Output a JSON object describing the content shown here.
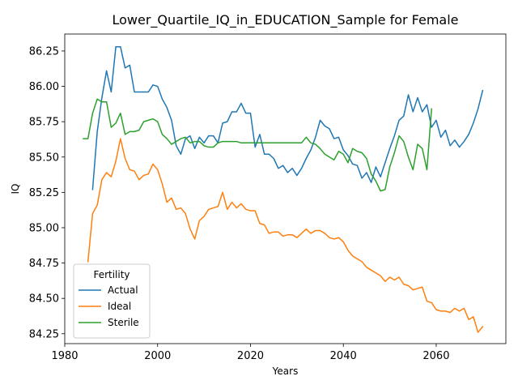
{
  "chart_data": {
    "type": "line",
    "title": "Lower_Quartile_IQ_in_EDUCATION_Sample for Female",
    "xlabel": "Years",
    "ylabel": "IQ",
    "xlim": [
      1980,
      2075
    ],
    "ylim": [
      84.18,
      86.37
    ],
    "x_ticks": [
      1980,
      2000,
      2020,
      2040,
      2060
    ],
    "y_ticks": [
      84.25,
      84.5,
      84.75,
      85.0,
      85.25,
      85.5,
      85.75,
      86.0,
      86.25
    ],
    "y_tick_labels": [
      "84.25",
      "84.50",
      "84.75",
      "85.00",
      "85.25",
      "85.50",
      "85.75",
      "86.00",
      "86.25"
    ],
    "grid": false,
    "legend": {
      "title": "Fertility",
      "position": "lower-left"
    },
    "series": [
      {
        "name": "Actual",
        "color": "#1f77b4",
        "x": [
          1986,
          1987,
          1988,
          1989,
          1990,
          1991,
          1992,
          1993,
          1994,
          1995,
          1996,
          1997,
          1998,
          1999,
          2000,
          2001,
          2002,
          2003,
          2004,
          2005,
          2006,
          2007,
          2008,
          2009,
          2010,
          2011,
          2012,
          2013,
          2014,
          2015,
          2016,
          2017,
          2018,
          2019,
          2020,
          2021,
          2022,
          2023,
          2024,
          2025,
          2026,
          2027,
          2028,
          2029,
          2030,
          2031,
          2032,
          2033,
          2034,
          2035,
          2036,
          2037,
          2038,
          2039,
          2040,
          2041,
          2042,
          2043,
          2044,
          2045,
          2046,
          2047,
          2048,
          2049,
          2050,
          2051,
          2052,
          2053,
          2054,
          2055,
          2056,
          2057,
          2058,
          2059,
          2060,
          2061,
          2062,
          2063,
          2064,
          2065,
          2066,
          2067,
          2068,
          2069,
          2070
        ],
        "values": [
          85.27,
          85.68,
          85.92,
          86.11,
          85.96,
          86.28,
          86.28,
          86.13,
          86.15,
          85.96,
          85.96,
          85.96,
          85.96,
          86.01,
          86.0,
          85.91,
          85.85,
          85.76,
          85.58,
          85.52,
          85.63,
          85.65,
          85.56,
          85.64,
          85.6,
          85.65,
          85.65,
          85.6,
          85.74,
          85.75,
          85.82,
          85.82,
          85.88,
          85.81,
          85.81,
          85.57,
          85.66,
          85.52,
          85.52,
          85.49,
          85.42,
          85.44,
          85.39,
          85.42,
          85.37,
          85.42,
          85.49,
          85.55,
          85.64,
          85.76,
          85.72,
          85.7,
          85.63,
          85.64,
          85.55,
          85.51,
          85.45,
          85.44,
          85.35,
          85.39,
          85.32,
          85.43,
          85.36,
          85.46,
          85.56,
          85.65,
          85.76,
          85.79,
          85.94,
          85.82,
          85.92,
          85.82,
          85.87,
          85.71,
          85.76,
          85.64,
          85.69,
          85.58,
          85.62,
          85.57,
          85.61,
          85.66,
          85.74,
          85.84,
          85.97
        ]
      },
      {
        "name": "Ideal",
        "color": "#ff7f0e",
        "x": [
          1985,
          1986,
          1987,
          1988,
          1989,
          1990,
          1991,
          1992,
          1993,
          1994,
          1995,
          1996,
          1997,
          1998,
          1999,
          2000,
          2001,
          2002,
          2003,
          2004,
          2005,
          2006,
          2007,
          2008,
          2009,
          2010,
          2011,
          2012,
          2013,
          2014,
          2015,
          2016,
          2017,
          2018,
          2019,
          2020,
          2021,
          2022,
          2023,
          2024,
          2025,
          2026,
          2027,
          2028,
          2029,
          2030,
          2031,
          2032,
          2033,
          2034,
          2035,
          2036,
          2037,
          2038,
          2039,
          2040,
          2041,
          2042,
          2043,
          2044,
          2045,
          2046,
          2047,
          2048,
          2049,
          2050,
          2051,
          2052,
          2053,
          2054,
          2055,
          2056,
          2057,
          2058,
          2059,
          2060,
          2061,
          2062,
          2063,
          2064,
          2065,
          2066,
          2067,
          2068,
          2069,
          2070
        ],
        "values": [
          84.76,
          85.1,
          85.16,
          85.34,
          85.39,
          85.36,
          85.47,
          85.63,
          85.49,
          85.41,
          85.4,
          85.34,
          85.37,
          85.38,
          85.45,
          85.41,
          85.31,
          85.18,
          85.21,
          85.13,
          85.14,
          85.1,
          84.99,
          84.92,
          85.05,
          85.08,
          85.13,
          85.14,
          85.15,
          85.25,
          85.13,
          85.18,
          85.14,
          85.17,
          85.13,
          85.12,
          85.12,
          85.03,
          85.02,
          84.96,
          84.97,
          84.97,
          84.94,
          84.95,
          84.95,
          84.93,
          84.96,
          84.99,
          84.96,
          84.98,
          84.98,
          84.96,
          84.93,
          84.92,
          84.93,
          84.9,
          84.84,
          84.8,
          84.78,
          84.76,
          84.72,
          84.7,
          84.68,
          84.66,
          84.62,
          84.65,
          84.63,
          84.65,
          84.6,
          84.59,
          84.56,
          84.57,
          84.58,
          84.48,
          84.47,
          84.42,
          84.41,
          84.41,
          84.4,
          84.43,
          84.41,
          84.43,
          84.35,
          84.37,
          84.26,
          84.3
        ]
      },
      {
        "name": "Sterile",
        "color": "#2ca02c",
        "x": [
          1984,
          1985,
          1986,
          1987,
          1988,
          1989,
          1990,
          1991,
          1992,
          1993,
          1994,
          1995,
          1996,
          1997,
          1998,
          1999,
          2000,
          2001,
          2002,
          2003,
          2004,
          2005,
          2006,
          2007,
          2008,
          2009,
          2010,
          2011,
          2012,
          2013,
          2014,
          2015,
          2016,
          2017,
          2018,
          2019,
          2020,
          2021,
          2022,
          2023,
          2024,
          2025,
          2026,
          2027,
          2028,
          2029,
          2030,
          2031,
          2032,
          2033,
          2034,
          2035,
          2036,
          2037,
          2038,
          2039,
          2040,
          2041,
          2042,
          2043,
          2044,
          2045,
          2046,
          2047,
          2048,
          2049,
          2050,
          2051,
          2052,
          2053,
          2054,
          2055,
          2056,
          2057,
          2058,
          2059
        ],
        "values": [
          85.63,
          85.63,
          85.81,
          85.91,
          85.89,
          85.89,
          85.71,
          85.74,
          85.81,
          85.66,
          85.68,
          85.68,
          85.69,
          85.75,
          85.76,
          85.77,
          85.75,
          85.66,
          85.63,
          85.59,
          85.61,
          85.63,
          85.64,
          85.6,
          85.61,
          85.61,
          85.58,
          85.57,
          85.57,
          85.6,
          85.61,
          85.61,
          85.61,
          85.61,
          85.6,
          85.6,
          85.6,
          85.6,
          85.6,
          85.6,
          85.6,
          85.6,
          85.6,
          85.6,
          85.6,
          85.6,
          85.6,
          85.6,
          85.64,
          85.6,
          85.59,
          85.56,
          85.52,
          85.5,
          85.48,
          85.54,
          85.52,
          85.46,
          85.56,
          85.54,
          85.53,
          85.49,
          85.38,
          85.33,
          85.26,
          85.27,
          85.43,
          85.53,
          85.65,
          85.61,
          85.5,
          85.41,
          85.59,
          85.56,
          85.41,
          85.84
        ]
      }
    ]
  }
}
